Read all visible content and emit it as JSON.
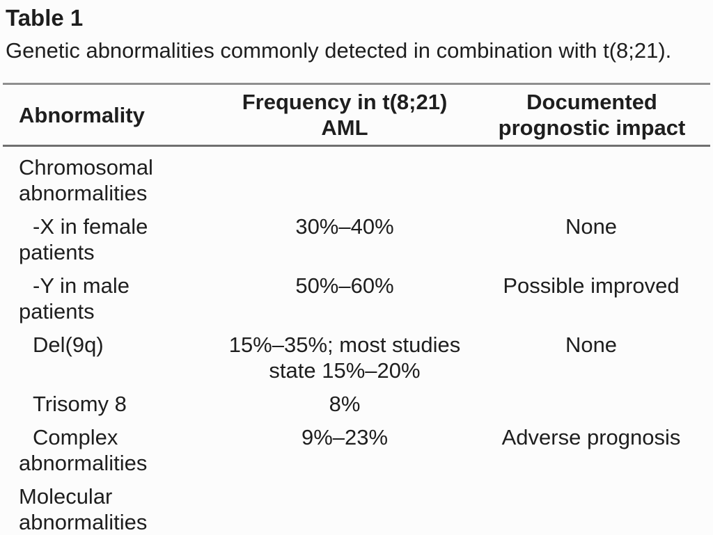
{
  "page": {
    "table_label": "Table 1",
    "caption": "Genetic abnormalities commonly detected in combination with t(8;21)."
  },
  "colors": {
    "background": "#fcfcfc",
    "text": "#1e1e1e",
    "rule_top": "#8f8f8f",
    "rule_header_bottom": "#6f6f6f"
  },
  "table": {
    "header": {
      "abnormality": "Abnormality",
      "frequency_line1": "Frequency in t(8;21)",
      "frequency_line2": "AML",
      "impact_line1": "Documented",
      "impact_line2": "prognostic impact"
    },
    "rows": [
      {
        "type": "section",
        "abnormality": "Chromosomal abnormalities",
        "frequency": "",
        "impact": ""
      },
      {
        "type": "item",
        "abnormality": "-X in female patients",
        "frequency": "30%–40%",
        "impact": "None"
      },
      {
        "type": "item",
        "abnormality": "-Y in male patients",
        "frequency": "50%–60%",
        "impact": "Possible improved"
      },
      {
        "type": "item",
        "abnormality": "Del(9q)",
        "frequency": "15%–35%; most studies state 15%–20%",
        "impact": "None"
      },
      {
        "type": "item",
        "abnormality": "Trisomy 8",
        "frequency": "8%",
        "impact": ""
      },
      {
        "type": "item",
        "abnormality": "Complex abnormalities",
        "frequency": "9%–23%",
        "impact": "Adverse prognosis"
      },
      {
        "type": "section",
        "abnormality": "Molecular abnormalities",
        "frequency": "",
        "impact": ""
      }
    ]
  }
}
